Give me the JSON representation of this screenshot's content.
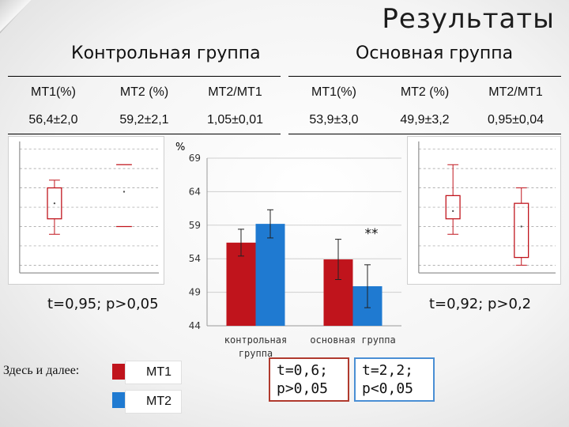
{
  "title": "Результаты",
  "groups": {
    "control": {
      "heading": "Контрольная группа",
      "headers": [
        "МТ1(%)",
        "МТ2 (%)",
        "МТ2/МТ1"
      ],
      "values": [
        "56,4±2,0",
        "59,2±2,1",
        "1,05±0,01"
      ],
      "stat": "t=0,95; p>0,05"
    },
    "main": {
      "heading": "Основная группа",
      "headers": [
        "МТ1(%)",
        "МТ2 (%)",
        "МТ2/МТ1"
      ],
      "values": [
        "53,9±3,0",
        "49,9±3,2",
        "0,95±0,04"
      ],
      "stat": "t=0,92; p>0,2"
    }
  },
  "legend": {
    "intro": "Здесь и далее:",
    "items": [
      {
        "label": "МТ1",
        "color": "#c0141c"
      },
      {
        "label": "МТ2",
        "color": "#1f7ad1"
      }
    ]
  },
  "annotation": "**",
  "tests": {
    "mt1": {
      "line1": "t=0,6;",
      "line2": "p>0,05"
    },
    "mt2": {
      "line1": "t=2,2;",
      "line2": "p<0,05"
    }
  },
  "chart_data": {
    "type": "bar",
    "ylabel": "%",
    "ylim": [
      44,
      69
    ],
    "yticks": [
      44,
      49,
      54,
      59,
      64,
      69
    ],
    "categories": [
      "контрольная группа",
      "основная группа"
    ],
    "series": [
      {
        "name": "МТ1",
        "color": "#c0141c",
        "values": [
          56.4,
          53.9
        ],
        "errors": [
          2.0,
          3.0
        ]
      },
      {
        "name": "МТ2",
        "color": "#1f7ad1",
        "values": [
          59.2,
          49.9
        ],
        "errors": [
          2.1,
          3.2
        ]
      }
    ],
    "grid": true
  },
  "boxplots": {
    "left": {
      "boxes": [
        {
          "color": "#c0141c",
          "top": 60,
          "bottom": 52,
          "whisker_high": 62,
          "whisker_low": 48,
          "median": 56
        },
        {
          "color": "#c0141c",
          "top": 66,
          "bottom": 50,
          "whisker_high": null,
          "whisker_low": null,
          "median": 59
        }
      ]
    },
    "right": {
      "boxes": [
        {
          "color": "#c0141c",
          "top": 58,
          "bottom": 52,
          "whisker_high": 66,
          "whisker_low": 48,
          "median": 54
        },
        {
          "color": "#c0141c",
          "top": 56,
          "bottom": 42,
          "whisker_high": 60,
          "whisker_low": 40,
          "median": 50
        }
      ]
    }
  }
}
